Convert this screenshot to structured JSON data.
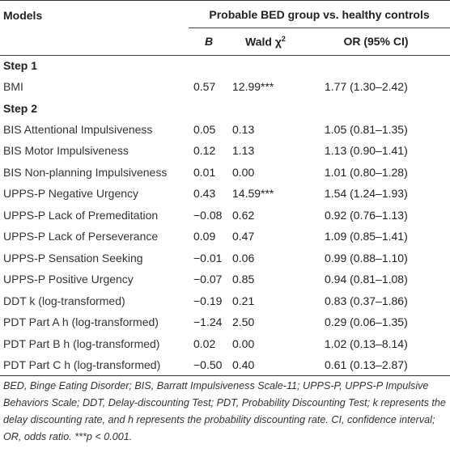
{
  "header": {
    "models": "Models",
    "group": "Probable BED group vs. healthy controls",
    "col_b": "B",
    "col_wald": "Wald χ",
    "col_wald_sup": "2",
    "col_or": "OR (95% CI)"
  },
  "steps": [
    {
      "label": "Step 1",
      "rows": [
        {
          "name": "BMI",
          "b": "0.57",
          "wald": "12.99***",
          "or": "1.77 (1.30–2.42)"
        }
      ]
    },
    {
      "label": "Step 2",
      "rows": [
        {
          "name": "BIS Attentional Impulsiveness",
          "b": "0.05",
          "wald": "0.13",
          "or": "1.05 (0.81–1.35)"
        },
        {
          "name": "BIS Motor Impulsiveness",
          "b": "0.12",
          "wald": "1.13",
          "or": "1.13 (0.90–1.41)"
        },
        {
          "name": "BIS Non-planning Impulsiveness",
          "b": "0.01",
          "wald": "0.00",
          "or": "1.01 (0.80–1.28)"
        },
        {
          "name": "UPPS-P Negative Urgency",
          "b": "0.43",
          "wald": "14.59***",
          "or": "1.54 (1.24–1.93)"
        },
        {
          "name": "UPPS-P Lack of Premeditation",
          "b": "−0.08",
          "wald": "0.62",
          "or": "0.92 (0.76–1.13)"
        },
        {
          "name": "UPPS-P Lack of Perseverance",
          "b": "0.09",
          "wald": "0.47",
          "or": "1.09 (0.85–1.41)"
        },
        {
          "name": "UPPS-P Sensation Seeking",
          "b": "−0.01",
          "wald": "0.06",
          "or": "0.99 (0.88–1.10)"
        },
        {
          "name": "UPPS-P Positive Urgency",
          "b": "−0.07",
          "wald": "0.85",
          "or": "0.94 (0.81–1.08)"
        },
        {
          "name": "DDT k (log-transformed)",
          "b": "−0.19",
          "wald": "0.21",
          "or": "0.83 (0.37–1.86)"
        },
        {
          "name": "PDT Part A h (log-transformed)",
          "b": "−1.24",
          "wald": "2.50",
          "or": "0.29 (0.06–1.35)"
        },
        {
          "name": "PDT Part B h (log-transformed)",
          "b": "0.02",
          "wald": "0.00",
          "or": "1.02 (0.13–8.14)"
        },
        {
          "name": "PDT Part C h (log-transformed)",
          "b": "−0.50",
          "wald": "0.40",
          "or": "0.61 (0.13–2.87)"
        }
      ]
    }
  ],
  "footnote": "BED, Binge Eating Disorder; BIS, Barratt Impulsiveness Scale-11; UPPS-P, UPPS-P Impulsive Behaviors Scale; DDT, Delay-discounting Test; PDT, Probability Discounting Test; k represents the delay discounting rate, and h represents the probability discounting rate. CI, confidence interval; OR, odds ratio. ***p < 0.001."
}
